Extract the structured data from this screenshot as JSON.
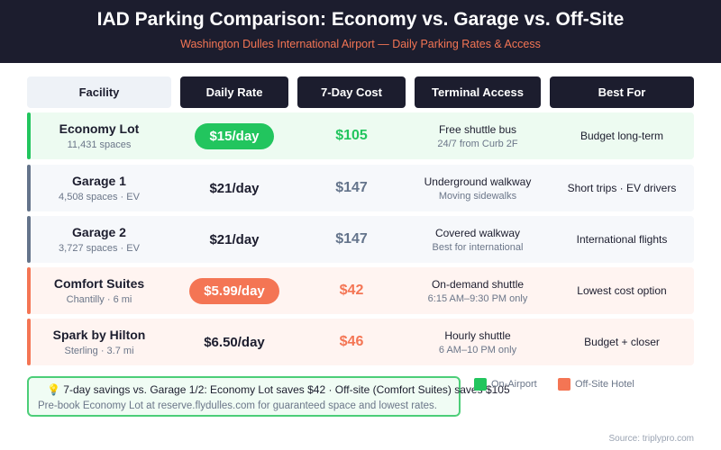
{
  "header": {
    "title": "IAD Parking Comparison: Economy vs. Garage vs. Off-Site",
    "subtitle": "Washington Dulles International Airport — Daily Parking Rates & Access"
  },
  "columns": [
    "Facility",
    "Daily Rate",
    "7-Day Cost",
    "Terminal Access",
    "Best For"
  ],
  "colors": {
    "on_airport": "#22c55e",
    "garage": "#64748b",
    "off_site": "#f47554"
  },
  "rows": [
    {
      "name": "Economy Lot",
      "detail": "11,431 spaces",
      "rate": "$15/day",
      "cost": "$105",
      "access": "Free shuttle bus",
      "access_detail": "24/7 from Curb 2F",
      "best": "Budget long-term"
    },
    {
      "name": "Garage 1",
      "detail": "4,508 spaces · EV",
      "rate": "$21/day",
      "cost": "$147",
      "access": "Underground walkway",
      "access_detail": "Moving sidewalks",
      "best": "Short trips · EV drivers"
    },
    {
      "name": "Garage 2",
      "detail": "3,727 spaces · EV",
      "rate": "$21/day",
      "cost": "$147",
      "access": "Covered walkway",
      "access_detail": "Best for international",
      "best": "International flights"
    },
    {
      "name": "Comfort Suites",
      "detail": "Chantilly · 6 mi",
      "rate": "$5.99/day",
      "cost": "$42",
      "access": "On-demand shuttle",
      "access_detail": "6:15 AM–9:30 PM only",
      "best": "Lowest cost option"
    },
    {
      "name": "Spark by Hilton",
      "detail": "Sterling · 3.7 mi",
      "rate": "$6.50/day",
      "cost": "$46",
      "access": "Hourly shuttle",
      "access_detail": "6 AM–10 PM only",
      "best": "Budget + closer"
    }
  ],
  "note": {
    "icon": "lightbulb-icon",
    "line1": "7-day savings vs. Garage 1/2: Economy Lot saves $42 · Off-site (Comfort Suites) saves $105",
    "line2": "Pre-book Economy Lot at reserve.flydulles.com for guaranteed space and lowest rates."
  },
  "legend": [
    {
      "label": "On-Airport",
      "color": "#22c55e"
    },
    {
      "label": "Off-Site Hotel",
      "color": "#f47554"
    }
  ],
  "source": "Source: triplypro.com"
}
